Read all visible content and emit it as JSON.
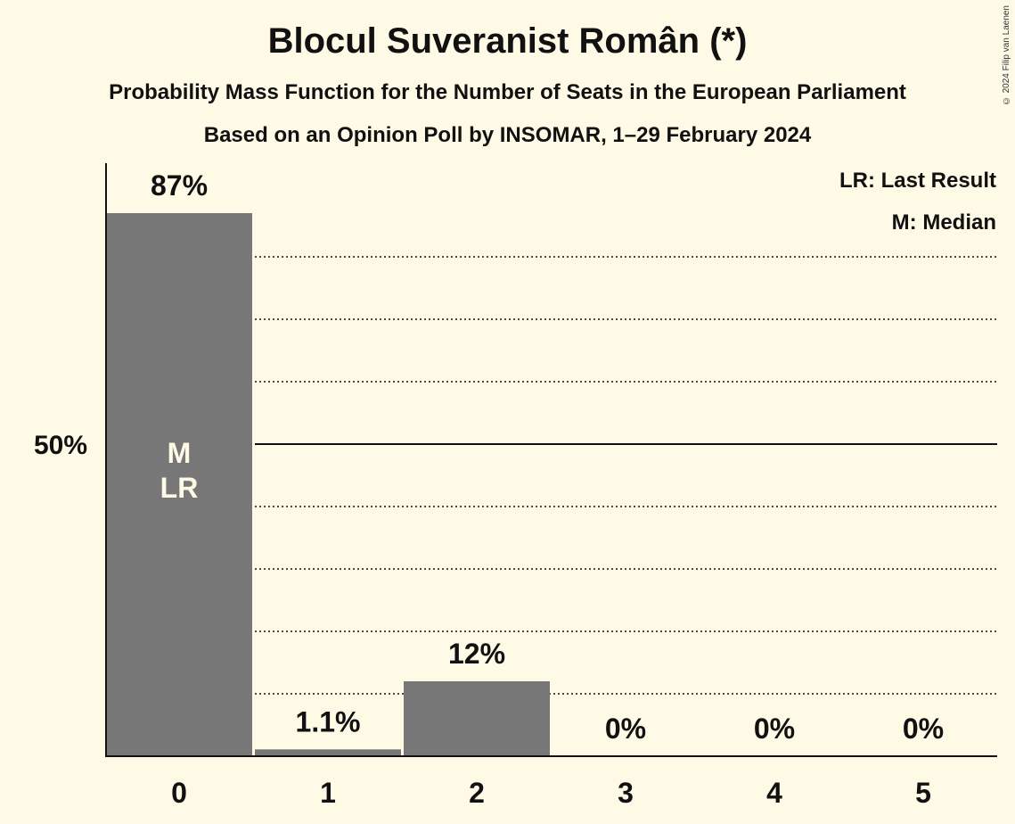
{
  "header": {
    "title": "Blocul Suveranist Român (*)",
    "subtitle": "Probability Mass Function for the Number of Seats in the European Parliament",
    "subtitle2": "Based on an Opinion Poll by INSOMAR, 1–29 February 2024",
    "copyright": "© 2024 Filip van Laenen"
  },
  "legend": {
    "lr": "LR: Last Result",
    "m": "M: Median"
  },
  "colors": {
    "background": "#fffae6",
    "bar": "#777777",
    "text": "#111111",
    "marker_text": "#fffae6"
  },
  "chart_data": {
    "type": "bar",
    "title": "Blocul Suveranist Român (*)",
    "categories": [
      "0",
      "1",
      "2",
      "3",
      "4",
      "5"
    ],
    "values": [
      87,
      1.1,
      12,
      0,
      0,
      0
    ],
    "data_labels": [
      "87%",
      "1.1%",
      "12%",
      "0%",
      "0%",
      "0%"
    ],
    "ylim": [
      0,
      95
    ],
    "y_tick_label": "50%",
    "y_tick_value": 50,
    "gridlines_dotted": [
      10,
      20,
      30,
      40,
      60,
      70,
      80
    ],
    "bar_markers": [
      {
        "category": "0",
        "labels": [
          "M",
          "LR"
        ]
      }
    ],
    "xlabel": "",
    "ylabel": ""
  }
}
